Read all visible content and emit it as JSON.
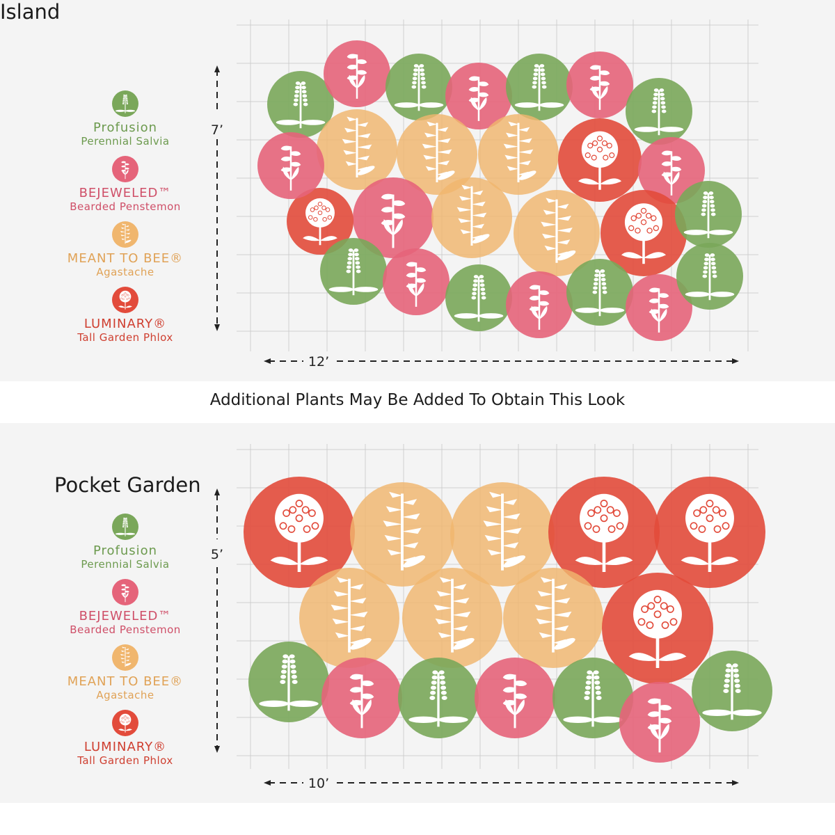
{
  "colors": {
    "salvia": "#7aa75a",
    "penstemon": "#e5647a",
    "agastache": "#f0b66e",
    "phlox": "#e24b3b",
    "salvia_text": "#6c9a4e",
    "penstemon_text": "#cf4f68",
    "agastache_text": "#e0a256",
    "phlox_text": "#cf3f30",
    "grid": "#cfcfcf"
  },
  "legend": [
    {
      "key": "salvia",
      "name": "Profusion",
      "sub": "Perennial Salvia",
      "icon": "salvia-icon"
    },
    {
      "key": "penstemon",
      "name": "BEJEWELED™",
      "sub": "Bearded Penstemon",
      "icon": "penstemon-icon"
    },
    {
      "key": "agastache",
      "name": "MEANT TO BEE®",
      "sub": "Agastache",
      "icon": "agastache-icon"
    },
    {
      "key": "phlox",
      "name": "LUMINARY®",
      "sub": "Tall Garden Phlox",
      "icon": "phlox-icon"
    }
  ],
  "separator_text": "Additional Plants May Be Added To Obtain This Look",
  "plans": [
    {
      "id": "island",
      "title": "Island",
      "height_label": "7’",
      "width_label": "12’",
      "plants": [
        "salvia",
        "penstemon",
        "salvia",
        "penstemon",
        "salvia",
        "penstemon",
        "salvia",
        "agastache",
        "agastache",
        "agastache",
        "phlox",
        "penstemon",
        "penstemon",
        "agastache",
        "agastache",
        "phlox",
        "phlox",
        "salvia",
        "salvia",
        "penstemon",
        "salvia",
        "penstemon",
        "salvia",
        "penstemon",
        "salvia",
        "penstemon"
      ]
    },
    {
      "id": "pocket",
      "title": "Pocket Garden",
      "height_label": "5’",
      "width_label": "10’",
      "plants": [
        "phlox",
        "agastache",
        "agastache",
        "phlox",
        "phlox",
        "agastache",
        "agastache",
        "agastache",
        "phlox",
        "salvia",
        "penstemon",
        "salvia",
        "penstemon",
        "salvia",
        "penstemon",
        "salvia"
      ]
    }
  ]
}
